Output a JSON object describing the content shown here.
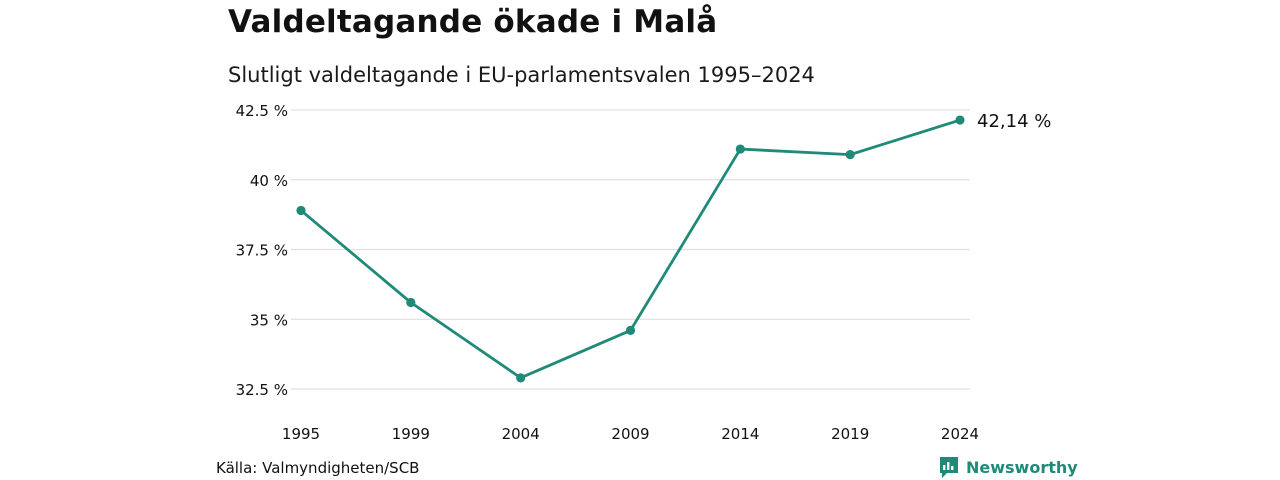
{
  "title": "Valdeltagande ökade i Malå",
  "subtitle": "Slutligt valdeltagande i EU-parlamentsvalen 1995–2024",
  "source": "Källa: Valmyndigheten/SCB",
  "brand": {
    "name": "Newsworthy",
    "icon": "chart-logo-icon"
  },
  "colors": {
    "line": "#1f8a78",
    "grid": "#e0e0e0",
    "text": "#111111"
  },
  "chart_data": {
    "type": "line",
    "title": "Valdeltagande ökade i Malå",
    "subtitle": "Slutligt valdeltagande i EU-parlamentsvalen 1995–2024",
    "categories": [
      "1995",
      "1999",
      "2004",
      "2009",
      "2014",
      "2019",
      "2024"
    ],
    "series": [
      {
        "values": [
          38.9,
          35.6,
          32.9,
          34.6,
          41.1,
          40.9,
          42.14
        ]
      }
    ],
    "ylim": [
      32.5,
      42.5
    ],
    "yticks": [
      32.5,
      35,
      37.5,
      40,
      42.5
    ],
    "ytick_labels": [
      "32.5 %",
      "35 %",
      "37.5 %",
      "40 %",
      "42.5 %"
    ],
    "end_label": "42,14 %",
    "grid": "horizontal",
    "legend": "none"
  }
}
